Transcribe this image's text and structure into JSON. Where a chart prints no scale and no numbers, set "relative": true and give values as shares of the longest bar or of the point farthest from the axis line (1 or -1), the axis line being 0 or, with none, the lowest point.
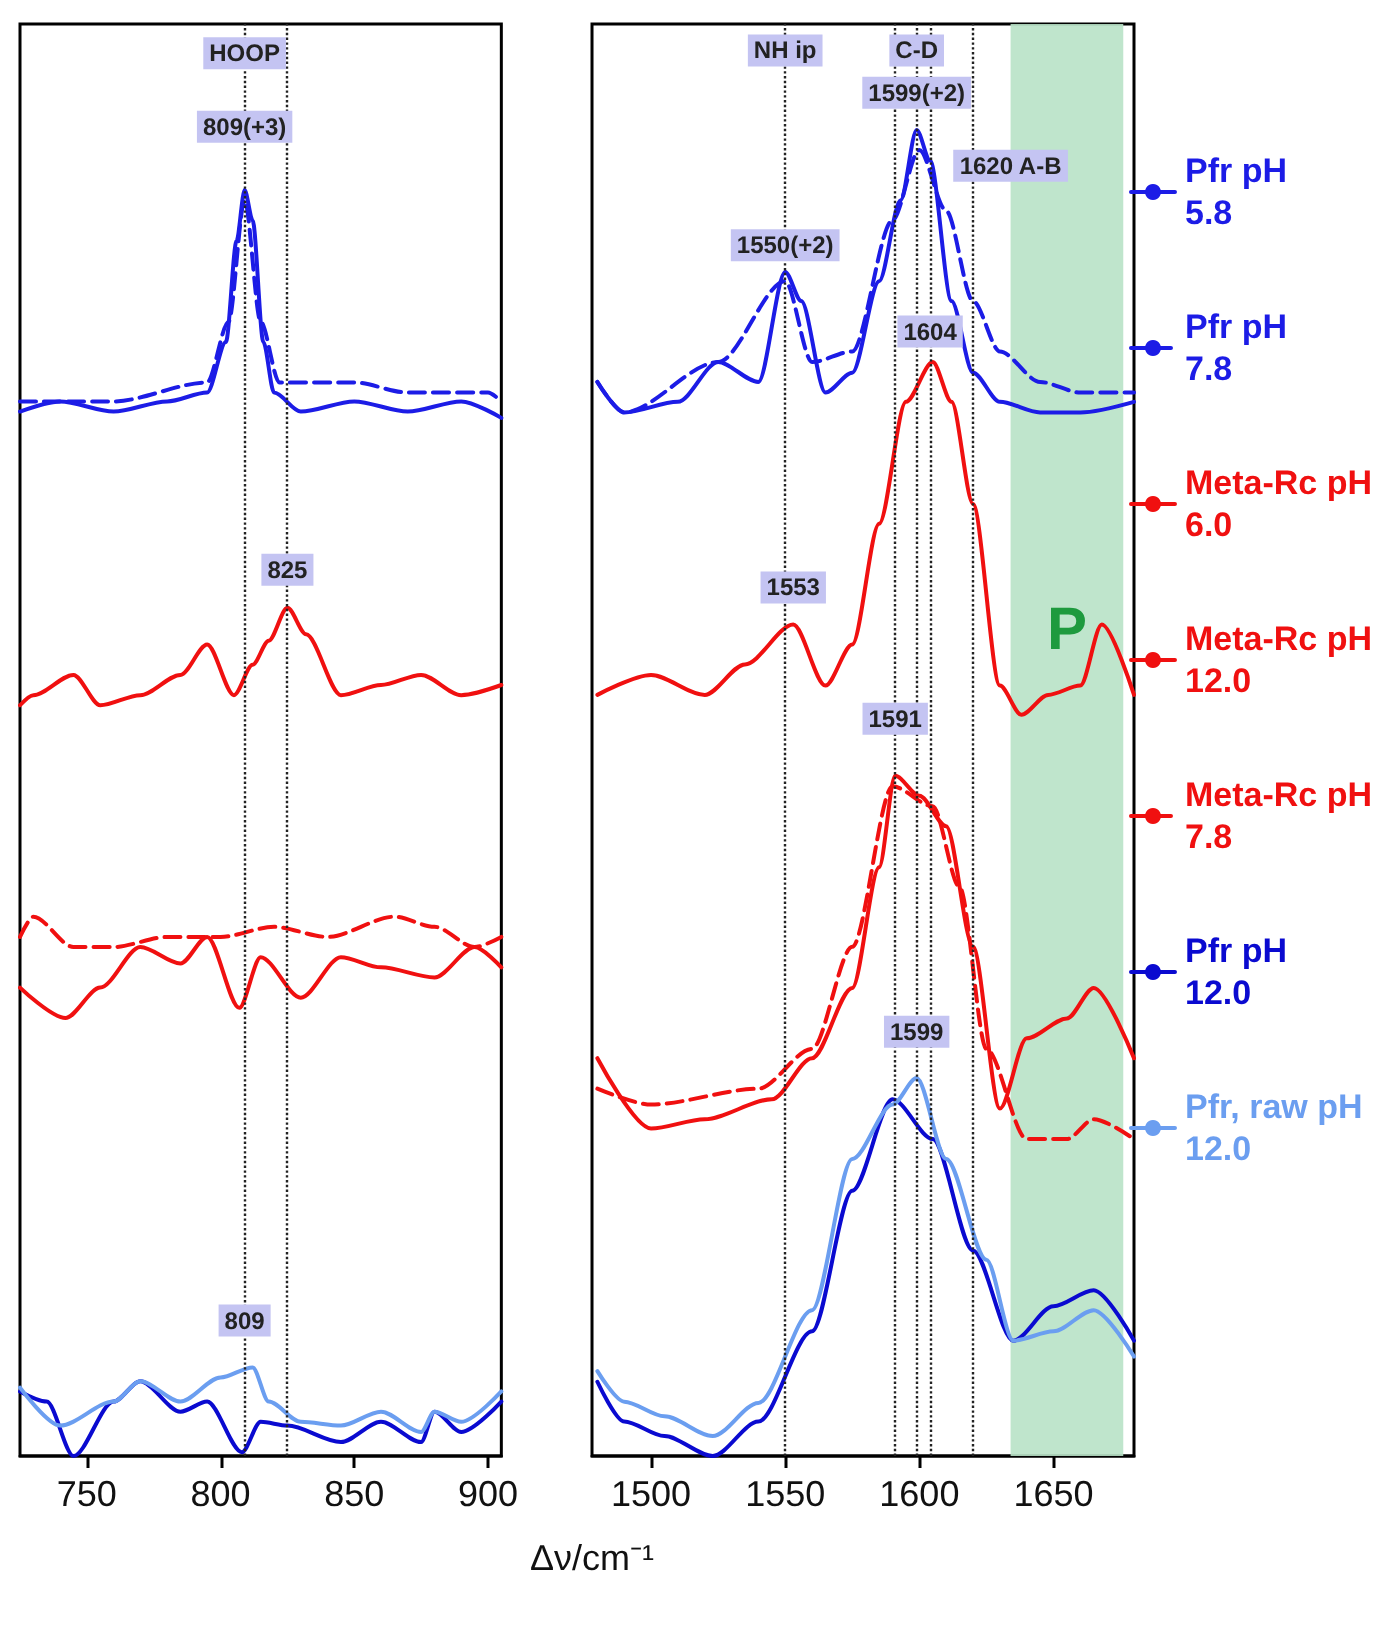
{
  "chart_data": [
    {
      "type": "line",
      "relative": true,
      "marker": "none",
      "xlim": [
        725,
        905
      ],
      "xticks": [
        750,
        800,
        850,
        900
      ],
      "series": [
        {
          "color": "#1c1ce6",
          "x": [
            725,
            740,
            760,
            780,
            795,
            802,
            806,
            809,
            812,
            816,
            820,
            830,
            850,
            870,
            890,
            905
          ],
          "values": [
            0.825,
            0.833,
            0.825,
            0.833,
            0.84,
            0.88,
            0.96,
            1.0,
            0.976,
            0.88,
            0.84,
            0.825,
            0.833,
            0.825,
            0.833,
            0.82
          ]
        },
        {
          "color": "#1c1ce6",
          "line_style": "dashed",
          "x": [
            725,
            760,
            795,
            803,
            809,
            815,
            822,
            850,
            870,
            900,
            905
          ],
          "values": [
            0.833,
            0.833,
            0.848,
            0.896,
            0.992,
            0.896,
            0.848,
            0.848,
            0.84,
            0.84,
            0.833
          ]
        },
        {
          "color": "#f01010",
          "x": [
            725,
            730,
            745,
            755,
            770,
            785,
            795,
            805,
            812,
            818,
            825,
            832,
            845,
            860,
            875,
            890,
            905
          ],
          "values": [
            0.593,
            0.601,
            0.617,
            0.593,
            0.601,
            0.617,
            0.641,
            0.601,
            0.625,
            0.644,
            0.67,
            0.649,
            0.601,
            0.609,
            0.617,
            0.601,
            0.609
          ]
        },
        {
          "color": "#f01010",
          "x": [
            725,
            742,
            755,
            770,
            785,
            795,
            807,
            815,
            830,
            845,
            860,
            880,
            895,
            905
          ],
          "values": [
            0.37,
            0.346,
            0.37,
            0.402,
            0.389,
            0.41,
            0.354,
            0.394,
            0.362,
            0.394,
            0.386,
            0.378,
            0.402,
            0.386
          ]
        },
        {
          "color": "#f01010",
          "line_style": "dashed",
          "x": [
            725,
            730,
            745,
            760,
            780,
            800,
            820,
            840,
            865,
            880,
            895,
            905
          ],
          "values": [
            0.41,
            0.426,
            0.402,
            0.402,
            0.41,
            0.41,
            0.418,
            0.41,
            0.426,
            0.418,
            0.402,
            0.41
          ]
        },
        {
          "color": "#0a0ad0",
          "x": [
            725,
            735,
            745,
            760,
            770,
            785,
            795,
            808,
            815,
            825,
            845,
            860,
            875,
            880,
            890,
            905
          ],
          "values": [
            0.051,
            0.043,
            0.0,
            0.043,
            0.059,
            0.035,
            0.043,
            0.003,
            0.027,
            0.024,
            0.011,
            0.027,
            0.011,
            0.035,
            0.019,
            0.043
          ]
        },
        {
          "color": "#6b9ef0",
          "x": [
            725,
            740,
            760,
            770,
            785,
            800,
            812,
            818,
            830,
            845,
            860,
            875,
            880,
            890,
            905
          ],
          "values": [
            0.054,
            0.024,
            0.043,
            0.059,
            0.043,
            0.062,
            0.07,
            0.043,
            0.027,
            0.024,
            0.035,
            0.019,
            0.035,
            0.027,
            0.051
          ]
        }
      ],
      "ref_lines": [
        {
          "axis": "x",
          "value": 809,
          "line_style": "dotted"
        },
        {
          "axis": "x",
          "value": 825,
          "line_style": "dotted"
        }
      ],
      "annotations": [
        {
          "text": "HOOP",
          "x": 809,
          "y": 1.108
        },
        {
          "text": "809(+3)",
          "x": 809,
          "y": 1.05
        },
        {
          "text": "825",
          "x": 825,
          "y": 0.7
        },
        {
          "text": "809",
          "x": 809,
          "y": 0.107
        }
      ]
    },
    {
      "type": "line",
      "relative": true,
      "marker": "none",
      "xlim": [
        1478,
        1680
      ],
      "xticks": [
        1500,
        1550,
        1600,
        1650
      ],
      "xlabel": "Δν/cm⁻¹",
      "legend": "right",
      "series": [
        {
          "name": "Pfr pH 5.8",
          "color": "#1c1ce6",
          "x": [
            1480,
            1490,
            1510,
            1525,
            1540,
            1550,
            1556,
            1565,
            1575,
            1585,
            1593,
            1599,
            1604,
            1612,
            1620,
            1630,
            1645,
            1660,
            1680
          ],
          "values": [
            0.81,
            0.787,
            0.795,
            0.825,
            0.81,
            0.893,
            0.871,
            0.802,
            0.817,
            0.886,
            0.947,
            1.0,
            0.977,
            0.871,
            0.817,
            0.795,
            0.787,
            0.787,
            0.795
          ]
        },
        {
          "name": "Pfr pH 7.8",
          "color": "#1c1ce6",
          "line_style": "dashed",
          "x": [
            1480,
            1490,
            1525,
            1550,
            1560,
            1575,
            1590,
            1600,
            1610,
            1620,
            1630,
            1645,
            1660,
            1680
          ],
          "values": [
            0.81,
            0.787,
            0.825,
            0.886,
            0.825,
            0.833,
            0.932,
            0.985,
            0.939,
            0.871,
            0.833,
            0.81,
            0.802,
            0.802
          ]
        },
        {
          "name": "Meta-Rc pH 6.0",
          "color": "#f01010",
          "x": [
            1480,
            1500,
            1520,
            1535,
            1553,
            1565,
            1575,
            1585,
            1595,
            1605,
            1612,
            1620,
            1630,
            1638,
            1648,
            1660,
            1668,
            1680
          ],
          "values": [
            0.574,
            0.589,
            0.574,
            0.597,
            0.627,
            0.581,
            0.612,
            0.703,
            0.795,
            0.825,
            0.795,
            0.718,
            0.581,
            0.559,
            0.574,
            0.581,
            0.627,
            0.574
          ]
        },
        {
          "name": "Meta-Rc pH 12.0",
          "color": "#f01010",
          "x": [
            1480,
            1500,
            1520,
            1545,
            1560,
            1575,
            1585,
            1591,
            1600,
            1610,
            1620,
            1630,
            1640,
            1655,
            1665,
            1680
          ],
          "values": [
            0.3,
            0.247,
            0.254,
            0.269,
            0.3,
            0.353,
            0.444,
            0.513,
            0.498,
            0.475,
            0.384,
            0.262,
            0.315,
            0.33,
            0.353,
            0.3
          ]
        },
        {
          "name": "Meta-Rc pH 7.8",
          "color": "#f01010",
          "line_style": "dashed",
          "x": [
            1480,
            1500,
            1540,
            1560,
            1575,
            1590,
            1605,
            1615,
            1625,
            1640,
            1655,
            1665,
            1680
          ],
          "values": [
            0.277,
            0.265,
            0.277,
            0.307,
            0.384,
            0.505,
            0.49,
            0.429,
            0.307,
            0.239,
            0.239,
            0.254,
            0.239
          ]
        },
        {
          "name": "Pfr pH 12.0",
          "color": "#0a0ad0",
          "x": [
            1480,
            1490,
            1505,
            1523,
            1540,
            1560,
            1575,
            1590,
            1605,
            1620,
            1635,
            1650,
            1665,
            1680
          ],
          "values": [
            0.056,
            0.026,
            0.015,
            0.0,
            0.026,
            0.094,
            0.2,
            0.269,
            0.239,
            0.155,
            0.087,
            0.113,
            0.125,
            0.087
          ]
        },
        {
          "name": "Pfr, raw pH 12.0",
          "color": "#6b9ef0",
          "x": [
            1480,
            1490,
            1505,
            1523,
            1540,
            1560,
            1575,
            1590,
            1599,
            1610,
            1625,
            1635,
            1650,
            1665,
            1680
          ],
          "values": [
            0.064,
            0.041,
            0.03,
            0.015,
            0.04,
            0.11,
            0.224,
            0.265,
            0.285,
            0.224,
            0.148,
            0.087,
            0.094,
            0.11,
            0.075
          ]
        }
      ],
      "bands": [
        {
          "axis": "x",
          "from": 1634,
          "to": 1676,
          "label": "P",
          "color": "#b8e2c6"
        }
      ],
      "ref_lines": [
        {
          "axis": "x",
          "value": 1550,
          "line_style": "dotted"
        },
        {
          "axis": "x",
          "value": 1591,
          "line_style": "dotted"
        },
        {
          "axis": "x",
          "value": 1599,
          "line_style": "dotted"
        },
        {
          "axis": "x",
          "value": 1604,
          "line_style": "dotted"
        },
        {
          "axis": "x",
          "value": 1620,
          "line_style": "dotted"
        }
      ],
      "annotations": [
        {
          "text": "NH ip",
          "x": 1550,
          "y": 1.06
        },
        {
          "text": "C-D",
          "x": 1599,
          "y": 1.06
        },
        {
          "text": "1599(+2)",
          "x": 1599,
          "y": 1.028
        },
        {
          "text": "1620 A-B",
          "x": 1634,
          "y": 0.973
        },
        {
          "text": "1550(+2)",
          "x": 1550,
          "y": 0.913
        },
        {
          "text": "1604",
          "x": 1604,
          "y": 0.848
        },
        {
          "text": "1553",
          "x": 1553,
          "y": 0.655
        },
        {
          "text": "1591",
          "x": 1591,
          "y": 0.556
        },
        {
          "text": "1599",
          "x": 1599,
          "y": 0.32
        }
      ]
    }
  ]
}
